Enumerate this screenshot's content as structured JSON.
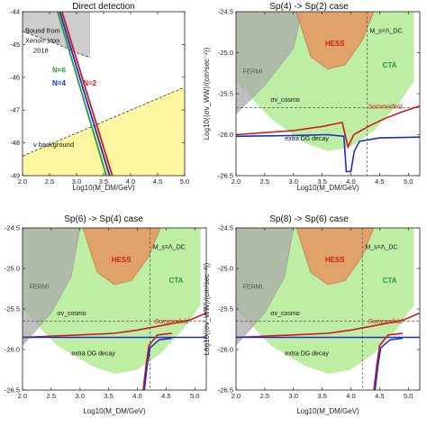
{
  "chart_data": [
    {
      "type": "line",
      "title": "Direct detection",
      "xlabel": "Log10(M_DM/GeV)",
      "ylabel": "Log10(σ_n/cm²)",
      "xlim": [
        2.0,
        5.0
      ],
      "ylim": [
        -49,
        -44
      ],
      "xticks": [
        "2.0",
        "2.5",
        "3.0",
        "3.5",
        "4.0",
        "4.5",
        "5.0"
      ],
      "yticks": [
        "-49",
        "-48",
        "-47",
        "-46",
        "-45",
        "-44"
      ],
      "colors": {
        "xenon": "#cccccc",
        "background": "#fdf6a0",
        "N6": "#2a9a3a",
        "N4": "#1a2fc8",
        "N2": "#d01a1a"
      },
      "regions": [
        {
          "label": "Bound from Xenon 1ton 2018",
          "boundary": [
            [
              2.0,
              -44.6
            ],
            [
              2.5,
              -44.9
            ],
            [
              2.8,
              -45.1
            ],
            [
              3.0,
              -45.25
            ],
            [
              3.25,
              -45.4
            ]
          ]
        },
        {
          "label": "ν background",
          "boundary": [
            [
              2.0,
              -48.4
            ],
            [
              3.0,
              -47.7
            ],
            [
              4.0,
              -47.0
            ],
            [
              5.0,
              -46.3
            ]
          ]
        }
      ],
      "series": [
        {
          "name": "N=6",
          "points": [
            [
              2.65,
              -44.0
            ],
            [
              3.55,
              -49.0
            ]
          ]
        },
        {
          "name": "N=4",
          "points": [
            [
              2.69,
              -44.0
            ],
            [
              3.61,
              -49.0
            ]
          ]
        },
        {
          "name": "N=2",
          "points": [
            [
              2.73,
              -44.0
            ],
            [
              3.66,
              -49.0
            ]
          ]
        }
      ],
      "labels": {
        "xenon_line1": "Bound from",
        "xenon_line2": "Xenon 1ton",
        "xenon_line3": "2018",
        "nu": "ν background",
        "n6": "N=6",
        "n4": "N=4",
        "n2": "N=2"
      }
    },
    {
      "type": "line",
      "title": "Sp(4) -> Sp(2) case",
      "xlabel": "Log10(M_DM/GeV)",
      "ylabel": "Log10(⟨σv_WW⟩/(cm³sec⁻¹))",
      "xlim": [
        2.0,
        5.2
      ],
      "ylim": [
        -26.5,
        -24.5
      ],
      "xticks": [
        "2.0",
        "2.5",
        "3.0",
        "3.5",
        "4.0",
        "4.5",
        "5.0"
      ],
      "yticks": [
        "-26.5",
        "-26.0",
        "-25.5",
        "-25.0",
        "-24.5"
      ],
      "colors": {
        "cta": "#b6ec9a",
        "hess": "#e7955f",
        "fermi": "#aaaaaa",
        "red": "#d01a1a",
        "blue": "#1a2fc8"
      },
      "fermi_boundary": [
        [
          2.0,
          -25.75
        ],
        [
          2.5,
          -25.4
        ],
        [
          3.0,
          -24.95
        ],
        [
          3.15,
          -24.5
        ]
      ],
      "cta_boundary": [
        [
          2.0,
          -25.35
        ],
        [
          2.6,
          -25.8
        ],
        [
          3.2,
          -26.1
        ],
        [
          3.6,
          -26.2
        ],
        [
          4.0,
          -26.15
        ],
        [
          4.4,
          -25.95
        ],
        [
          4.8,
          -25.65
        ],
        [
          5.1,
          -25.35
        ],
        [
          5.1,
          -24.5
        ]
      ],
      "hess_boundary": [
        [
          3.05,
          -24.5
        ],
        [
          3.3,
          -25.05
        ],
        [
          3.6,
          -25.2
        ],
        [
          3.9,
          -25.15
        ],
        [
          4.2,
          -24.85
        ],
        [
          4.4,
          -24.5
        ]
      ],
      "ms_line_x": 4.28,
      "cosmo_y": -25.67,
      "series": [
        {
          "name": "Sommerfeld",
          "color": "#d01a1a",
          "points": [
            [
              2.0,
              -26.0
            ],
            [
              3.0,
              -25.95
            ],
            [
              3.5,
              -25.9
            ],
            [
              3.85,
              -25.85
            ],
            [
              3.95,
              -26.15
            ],
            [
              4.05,
              -26.0
            ],
            [
              4.3,
              -25.9
            ],
            [
              4.6,
              -25.8
            ],
            [
              4.9,
              -25.72
            ],
            [
              5.2,
              -25.65
            ]
          ]
        },
        {
          "name": "extra DG decay",
          "color": "#1a2fc8",
          "points": [
            [
              2.0,
              -26.02
            ],
            [
              3.0,
              -26.01
            ],
            [
              3.6,
              -26.0
            ],
            [
              3.88,
              -26.02
            ],
            [
              3.92,
              -26.45
            ],
            [
              4.0,
              -26.45
            ],
            [
              4.06,
              -26.2
            ],
            [
              4.15,
              -26.08
            ],
            [
              4.5,
              -26.04
            ],
            [
              5.2,
              -26.03
            ]
          ]
        }
      ],
      "labels": {
        "fermi": "FERMI",
        "hess": "HESS",
        "cta": "CTA",
        "ms": "M_s=Λ_DC",
        "cosmo": "σv_cosmo",
        "sommerfeld": "Sommerfeld",
        "extra": "extra DG decay"
      }
    },
    {
      "type": "line",
      "title": "Sp(6) -> Sp(4) case",
      "xlabel": "Log10(M_DM/GeV)",
      "ylabel": "Log10(⟨σv_WW⟩/(cm³sec⁻¹))",
      "xlim": [
        2.0,
        5.2
      ],
      "ylim": [
        -26.5,
        -24.5
      ],
      "xticks": [
        "2.0",
        "2.5",
        "3.0",
        "3.5",
        "4.0",
        "4.5",
        "5.0"
      ],
      "yticks": [
        "-26.5",
        "-26.0",
        "-25.5",
        "-25.0",
        "-24.5"
      ],
      "colors": {
        "cta": "#b6ec9a",
        "hess": "#e7955f",
        "fermi": "#aaaaaa",
        "red": "#d01a1a",
        "blue": "#1a2fc8"
      },
      "fermi_boundary": [
        [
          2.0,
          -25.95
        ],
        [
          2.5,
          -25.55
        ],
        [
          2.85,
          -25.1
        ],
        [
          3.0,
          -24.5
        ]
      ],
      "cta_boundary": [
        [
          2.0,
          -25.5
        ],
        [
          2.6,
          -25.95
        ],
        [
          3.2,
          -26.2
        ],
        [
          3.6,
          -26.3
        ],
        [
          4.0,
          -26.25
        ],
        [
          4.4,
          -26.05
        ],
        [
          4.8,
          -25.75
        ],
        [
          5.1,
          -25.45
        ],
        [
          5.1,
          -24.5
        ]
      ],
      "hess_boundary": [
        [
          3.05,
          -24.5
        ],
        [
          3.3,
          -25.05
        ],
        [
          3.6,
          -25.2
        ],
        [
          3.9,
          -25.15
        ],
        [
          4.2,
          -24.85
        ],
        [
          4.4,
          -24.5
        ]
      ],
      "ms_line_x": 4.22,
      "cosmo_y": -25.65,
      "series": [
        {
          "name": "Sommerfeld",
          "color": "#d01a1a",
          "points": [
            [
              2.0,
              -25.85
            ],
            [
              3.0,
              -25.82
            ],
            [
              3.6,
              -25.8
            ],
            [
              4.0,
              -25.76
            ],
            [
              4.3,
              -25.72
            ],
            [
              4.6,
              -25.68
            ],
            [
              4.9,
              -25.64
            ],
            [
              5.2,
              -25.55
            ]
          ]
        },
        {
          "name": "extra DG decay",
          "color": "#1a2fc8",
          "points": [
            [
              2.0,
              -25.85
            ],
            [
              3.0,
              -25.85
            ],
            [
              3.8,
              -25.85
            ],
            [
              4.4,
              -25.85
            ],
            [
              5.2,
              -25.85
            ]
          ]
        },
        {
          "name": "red drop",
          "color": "#d01a1a",
          "points": [
            [
              4.1,
              -26.5
            ],
            [
              4.15,
              -26.2
            ],
            [
              4.2,
              -25.95
            ],
            [
              4.35,
              -25.82
            ],
            [
              4.6,
              -25.8
            ]
          ]
        },
        {
          "name": "blue drop",
          "color": "#1a2fc8",
          "points": [
            [
              4.12,
              -26.5
            ],
            [
              4.17,
              -26.2
            ],
            [
              4.22,
              -25.98
            ],
            [
              4.38,
              -25.88
            ],
            [
              4.6,
              -25.86
            ]
          ]
        }
      ],
      "labels": {
        "fermi": "FERMI",
        "hess": "HESS",
        "cta": "CTA",
        "ms": "M_s=Λ_DC",
        "cosmo": "σv_cosmo",
        "sommerfeld": "Sommerfeld",
        "extra": "extra DG decay"
      }
    },
    {
      "type": "line",
      "title": "Sp(8) -> Sp(6) case",
      "xlabel": "Log10(M_DM/GeV)",
      "ylabel": "Log10(⟨σv_WW⟩/(cm³sec⁻¹))",
      "xlim": [
        2.0,
        5.2
      ],
      "ylim": [
        -26.5,
        -24.5
      ],
      "xticks": [
        "2.0",
        "2.5",
        "3.0",
        "3.5",
        "4.0",
        "4.5",
        "5.0"
      ],
      "yticks": [
        "-26.5",
        "-26.0",
        "-25.5",
        "-25.0",
        "-24.5"
      ],
      "colors": {
        "cta": "#b6ec9a",
        "hess": "#e7955f",
        "fermi": "#aaaaaa",
        "red": "#d01a1a",
        "blue": "#1a2fc8"
      },
      "fermi_boundary": [
        [
          2.0,
          -25.95
        ],
        [
          2.5,
          -25.55
        ],
        [
          2.85,
          -25.1
        ],
        [
          3.0,
          -24.5
        ]
      ],
      "cta_boundary": [
        [
          2.0,
          -25.5
        ],
        [
          2.6,
          -25.95
        ],
        [
          3.2,
          -26.2
        ],
        [
          3.6,
          -26.3
        ],
        [
          4.0,
          -26.25
        ],
        [
          4.4,
          -26.05
        ],
        [
          4.8,
          -25.75
        ],
        [
          5.1,
          -25.45
        ],
        [
          5.1,
          -24.5
        ]
      ],
      "hess_boundary": [
        [
          3.05,
          -24.5
        ],
        [
          3.3,
          -25.05
        ],
        [
          3.6,
          -25.2
        ],
        [
          3.9,
          -25.15
        ],
        [
          4.2,
          -24.85
        ],
        [
          4.4,
          -24.5
        ]
      ],
      "ms_line_x": 4.2,
      "cosmo_y": -25.65,
      "series": [
        {
          "name": "Sommerfeld",
          "color": "#d01a1a",
          "points": [
            [
              2.0,
              -25.85
            ],
            [
              3.0,
              -25.82
            ],
            [
              3.6,
              -25.8
            ],
            [
              4.0,
              -25.76
            ],
            [
              4.3,
              -25.72
            ],
            [
              4.6,
              -25.68
            ],
            [
              4.9,
              -25.64
            ],
            [
              5.2,
              -25.55
            ]
          ]
        },
        {
          "name": "extra DG decay",
          "color": "#1a2fc8",
          "points": [
            [
              2.0,
              -25.85
            ],
            [
              3.0,
              -25.85
            ],
            [
              3.8,
              -25.85
            ],
            [
              4.4,
              -25.85
            ],
            [
              5.2,
              -25.85
            ]
          ]
        },
        {
          "name": "red drop",
          "color": "#d01a1a",
          "points": [
            [
              4.4,
              -26.5
            ],
            [
              4.45,
              -26.2
            ],
            [
              4.5,
              -25.95
            ],
            [
              4.65,
              -25.82
            ],
            [
              4.9,
              -25.8
            ]
          ]
        },
        {
          "name": "blue drop",
          "color": "#1a2fc8",
          "points": [
            [
              4.42,
              -26.5
            ],
            [
              4.47,
              -26.2
            ],
            [
              4.52,
              -25.98
            ],
            [
              4.68,
              -25.88
            ],
            [
              4.9,
              -25.86
            ]
          ]
        }
      ],
      "labels": {
        "fermi": "FERMI",
        "hess": "HESS",
        "cta": "CTA",
        "ms": "M_s=Λ_DC",
        "cosmo": "σv_cosmo",
        "sommerfeld": "Sommerfeld",
        "extra": "extra DG decay"
      }
    }
  ]
}
